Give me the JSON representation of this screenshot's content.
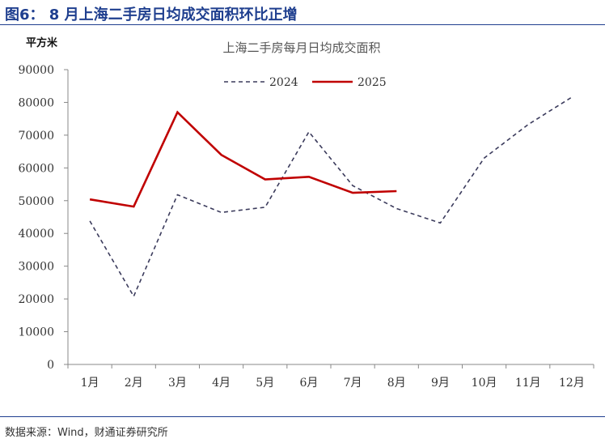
{
  "figure": {
    "title": "图6： 8 月上海二手房日均成交面积环比正增",
    "source": "数据来源：Wind，财通证券研究所"
  },
  "chart_data": {
    "type": "line",
    "title": "上海二手房每月日均成交面积",
    "ylabel": "平方米",
    "xlabel": "",
    "ylim": [
      0,
      90000
    ],
    "yticks": [
      0,
      10000,
      20000,
      30000,
      40000,
      50000,
      60000,
      70000,
      80000,
      90000
    ],
    "categories": [
      "1月",
      "2月",
      "3月",
      "4月",
      "5月",
      "6月",
      "7月",
      "8月",
      "9月",
      "10月",
      "11月",
      "12月"
    ],
    "grid": false,
    "legend_position": "top-center",
    "series": [
      {
        "name": "2024",
        "color": "#3b3b5c",
        "dash": "dashed",
        "values": [
          43800,
          20800,
          51800,
          46400,
          48000,
          71000,
          54600,
          47600,
          43200,
          63000,
          73200,
          81600
        ]
      },
      {
        "name": "2025",
        "color": "#c00000",
        "dash": "solid",
        "values": [
          50400,
          48200,
          77000,
          64000,
          56500,
          57300,
          52400,
          52900,
          null,
          null,
          null,
          null
        ]
      }
    ]
  }
}
